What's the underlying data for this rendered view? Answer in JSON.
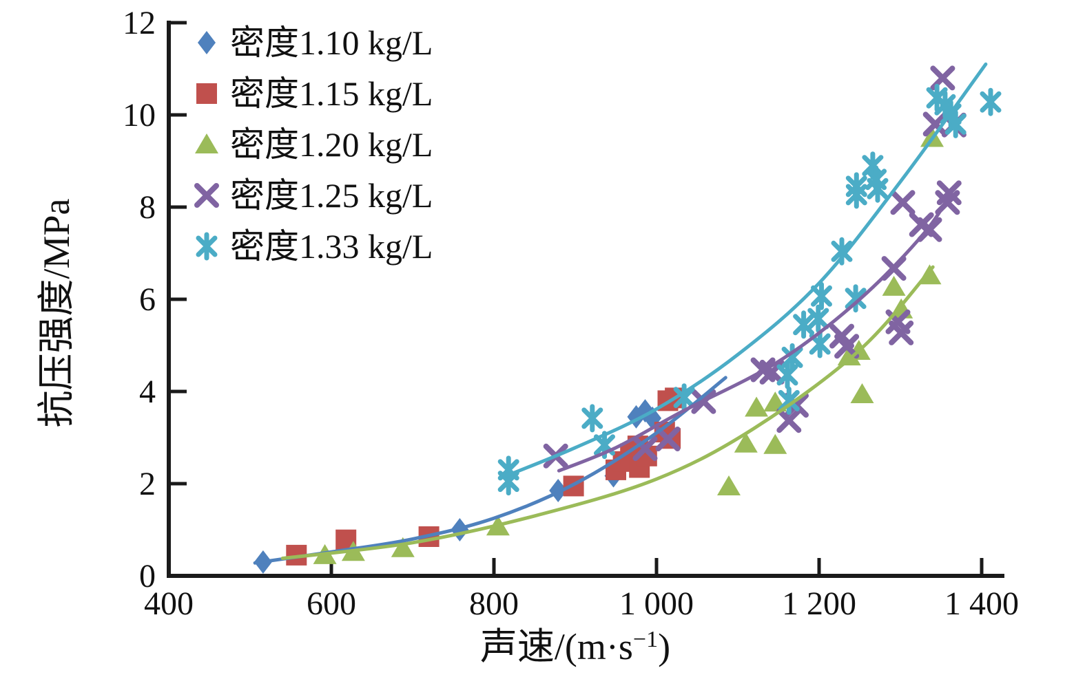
{
  "figure": {
    "background": "#ffffff",
    "text_color": "#111111",
    "axis_color": "#1a1a1a"
  },
  "chart_data": {
    "type": "scatter",
    "title": "",
    "xlabel": "声速/(m·s⁻¹)",
    "xlabel_parts": {
      "base": "声速/(m·s",
      "sup": "−1",
      "close": ")"
    },
    "ylabel": "抗压强度/MPa",
    "xlim": [
      400,
      1400
    ],
    "ylim": [
      0,
      12
    ],
    "grid": false,
    "legend_position": "top-left",
    "x_ticks": [
      {
        "v": 400,
        "label": "400"
      },
      {
        "v": 600,
        "label": "600"
      },
      {
        "v": 800,
        "label": "800"
      },
      {
        "v": 1000,
        "label": "1 000"
      },
      {
        "v": 1200,
        "label": "1 200"
      },
      {
        "v": 1400,
        "label": "1 400"
      }
    ],
    "y_ticks": [
      {
        "v": 0,
        "label": "0"
      },
      {
        "v": 2,
        "label": "2"
      },
      {
        "v": 4,
        "label": "4"
      },
      {
        "v": 6,
        "label": "6"
      },
      {
        "v": 8,
        "label": "8"
      },
      {
        "v": 10,
        "label": "10"
      },
      {
        "v": 12,
        "label": "12"
      }
    ],
    "series": [
      {
        "name": "密度1.10 kg/L",
        "marker": "diamond",
        "color": "#4F81BD",
        "points": [
          [
            516,
            0.3
          ],
          [
            758,
            1.0
          ],
          [
            879,
            1.85
          ],
          [
            947,
            2.17
          ],
          [
            975,
            3.45
          ],
          [
            986,
            3.58
          ],
          [
            995,
            3.42
          ]
        ],
        "trend": [
          [
            506,
            0.28
          ],
          [
            600,
            0.52
          ],
          [
            700,
            0.8
          ],
          [
            800,
            1.25
          ],
          [
            900,
            2.0
          ],
          [
            1000,
            3.1
          ],
          [
            1085,
            4.3
          ]
        ]
      },
      {
        "name": "密度1.15 kg/L",
        "marker": "square",
        "color": "#C0504D",
        "points": [
          [
            557,
            0.45
          ],
          [
            618,
            0.78
          ],
          [
            720,
            0.85
          ],
          [
            898,
            1.95
          ],
          [
            950,
            2.3
          ],
          [
            959,
            2.48
          ],
          [
            968,
            2.65
          ],
          [
            977,
            2.82
          ],
          [
            979,
            2.35
          ],
          [
            988,
            2.6
          ],
          [
            1010,
            3.12
          ],
          [
            1017,
            2.98
          ],
          [
            1014,
            3.8
          ],
          [
            1023,
            3.86
          ]
        ],
        "trend": []
      },
      {
        "name": "密度1.20 kg/L",
        "marker": "triangle",
        "color": "#9BBB59",
        "points": [
          [
            592,
            0.45
          ],
          [
            627,
            0.52
          ],
          [
            688,
            0.6
          ],
          [
            805,
            1.07
          ],
          [
            1089,
            1.94
          ],
          [
            1110,
            2.87
          ],
          [
            1146,
            2.84
          ],
          [
            1123,
            3.65
          ],
          [
            1146,
            3.76
          ],
          [
            1253,
            3.94
          ],
          [
            1237,
            4.76
          ],
          [
            1249,
            4.88
          ],
          [
            1301,
            5.78
          ],
          [
            1292,
            6.27
          ],
          [
            1336,
            6.52
          ],
          [
            1339,
            9.5
          ]
        ],
        "trend": [
          [
            540,
            0.38
          ],
          [
            700,
            0.72
          ],
          [
            850,
            1.3
          ],
          [
            1000,
            2.1
          ],
          [
            1120,
            3.2
          ],
          [
            1250,
            4.9
          ],
          [
            1340,
            6.7
          ]
        ]
      },
      {
        "name": "密度1.25 kg/L",
        "marker": "x",
        "color": "#8064A2",
        "points": [
          [
            876,
            2.6
          ],
          [
            986,
            2.76
          ],
          [
            1014,
            2.97
          ],
          [
            1058,
            3.78
          ],
          [
            1131,
            4.47
          ],
          [
            1142,
            4.42
          ],
          [
            1163,
            3.37
          ],
          [
            1172,
            3.7
          ],
          [
            1228,
            5.2
          ],
          [
            1234,
            4.98
          ],
          [
            1292,
            6.67
          ],
          [
            1297,
            5.51
          ],
          [
            1301,
            5.27
          ],
          [
            1303,
            8.1
          ],
          [
            1326,
            7.62
          ],
          [
            1336,
            7.51
          ],
          [
            1343,
            9.8
          ],
          [
            1352,
            10.8
          ],
          [
            1358,
            8.1
          ],
          [
            1360,
            8.31
          ],
          [
            1366,
            9.78
          ]
        ],
        "trend": [
          [
            880,
            2.28
          ],
          [
            950,
            2.78
          ],
          [
            1030,
            3.55
          ],
          [
            1150,
            4.65
          ],
          [
            1250,
            6.0
          ],
          [
            1330,
            7.45
          ],
          [
            1365,
            8.4
          ]
        ]
      },
      {
        "name": "密度1.33 kg/L",
        "marker": "asterisk",
        "color": "#4BACC6",
        "points": [
          [
            818,
            2.3
          ],
          [
            818,
            2.05
          ],
          [
            921,
            3.42
          ],
          [
            936,
            2.84
          ],
          [
            1034,
            3.87
          ],
          [
            1161,
            4.36
          ],
          [
            1163,
            3.8
          ],
          [
            1167,
            4.74
          ],
          [
            1181,
            5.45
          ],
          [
            1199,
            5.58
          ],
          [
            1201,
            5.03
          ],
          [
            1203,
            6.07
          ],
          [
            1245,
            6.02
          ],
          [
            1228,
            7.04
          ],
          [
            1246,
            8.45
          ],
          [
            1246,
            8.27
          ],
          [
            1266,
            8.9
          ],
          [
            1270,
            8.6
          ],
          [
            1272,
            8.4
          ],
          [
            1345,
            10.37
          ],
          [
            1355,
            10.22
          ],
          [
            1362,
            10.02
          ],
          [
            1368,
            9.8
          ],
          [
            1411,
            10.28
          ]
        ],
        "trend": [
          [
            808,
            2.12
          ],
          [
            900,
            2.78
          ],
          [
            1000,
            3.62
          ],
          [
            1100,
            4.8
          ],
          [
            1200,
            6.35
          ],
          [
            1300,
            8.55
          ],
          [
            1405,
            11.1
          ]
        ]
      }
    ]
  },
  "legend": {
    "items": [
      "密度1.10 kg/L",
      "密度1.15 kg/L",
      "密度1.20 kg/L",
      "密度1.25 kg/L",
      "密度1.33 kg/L"
    ]
  }
}
